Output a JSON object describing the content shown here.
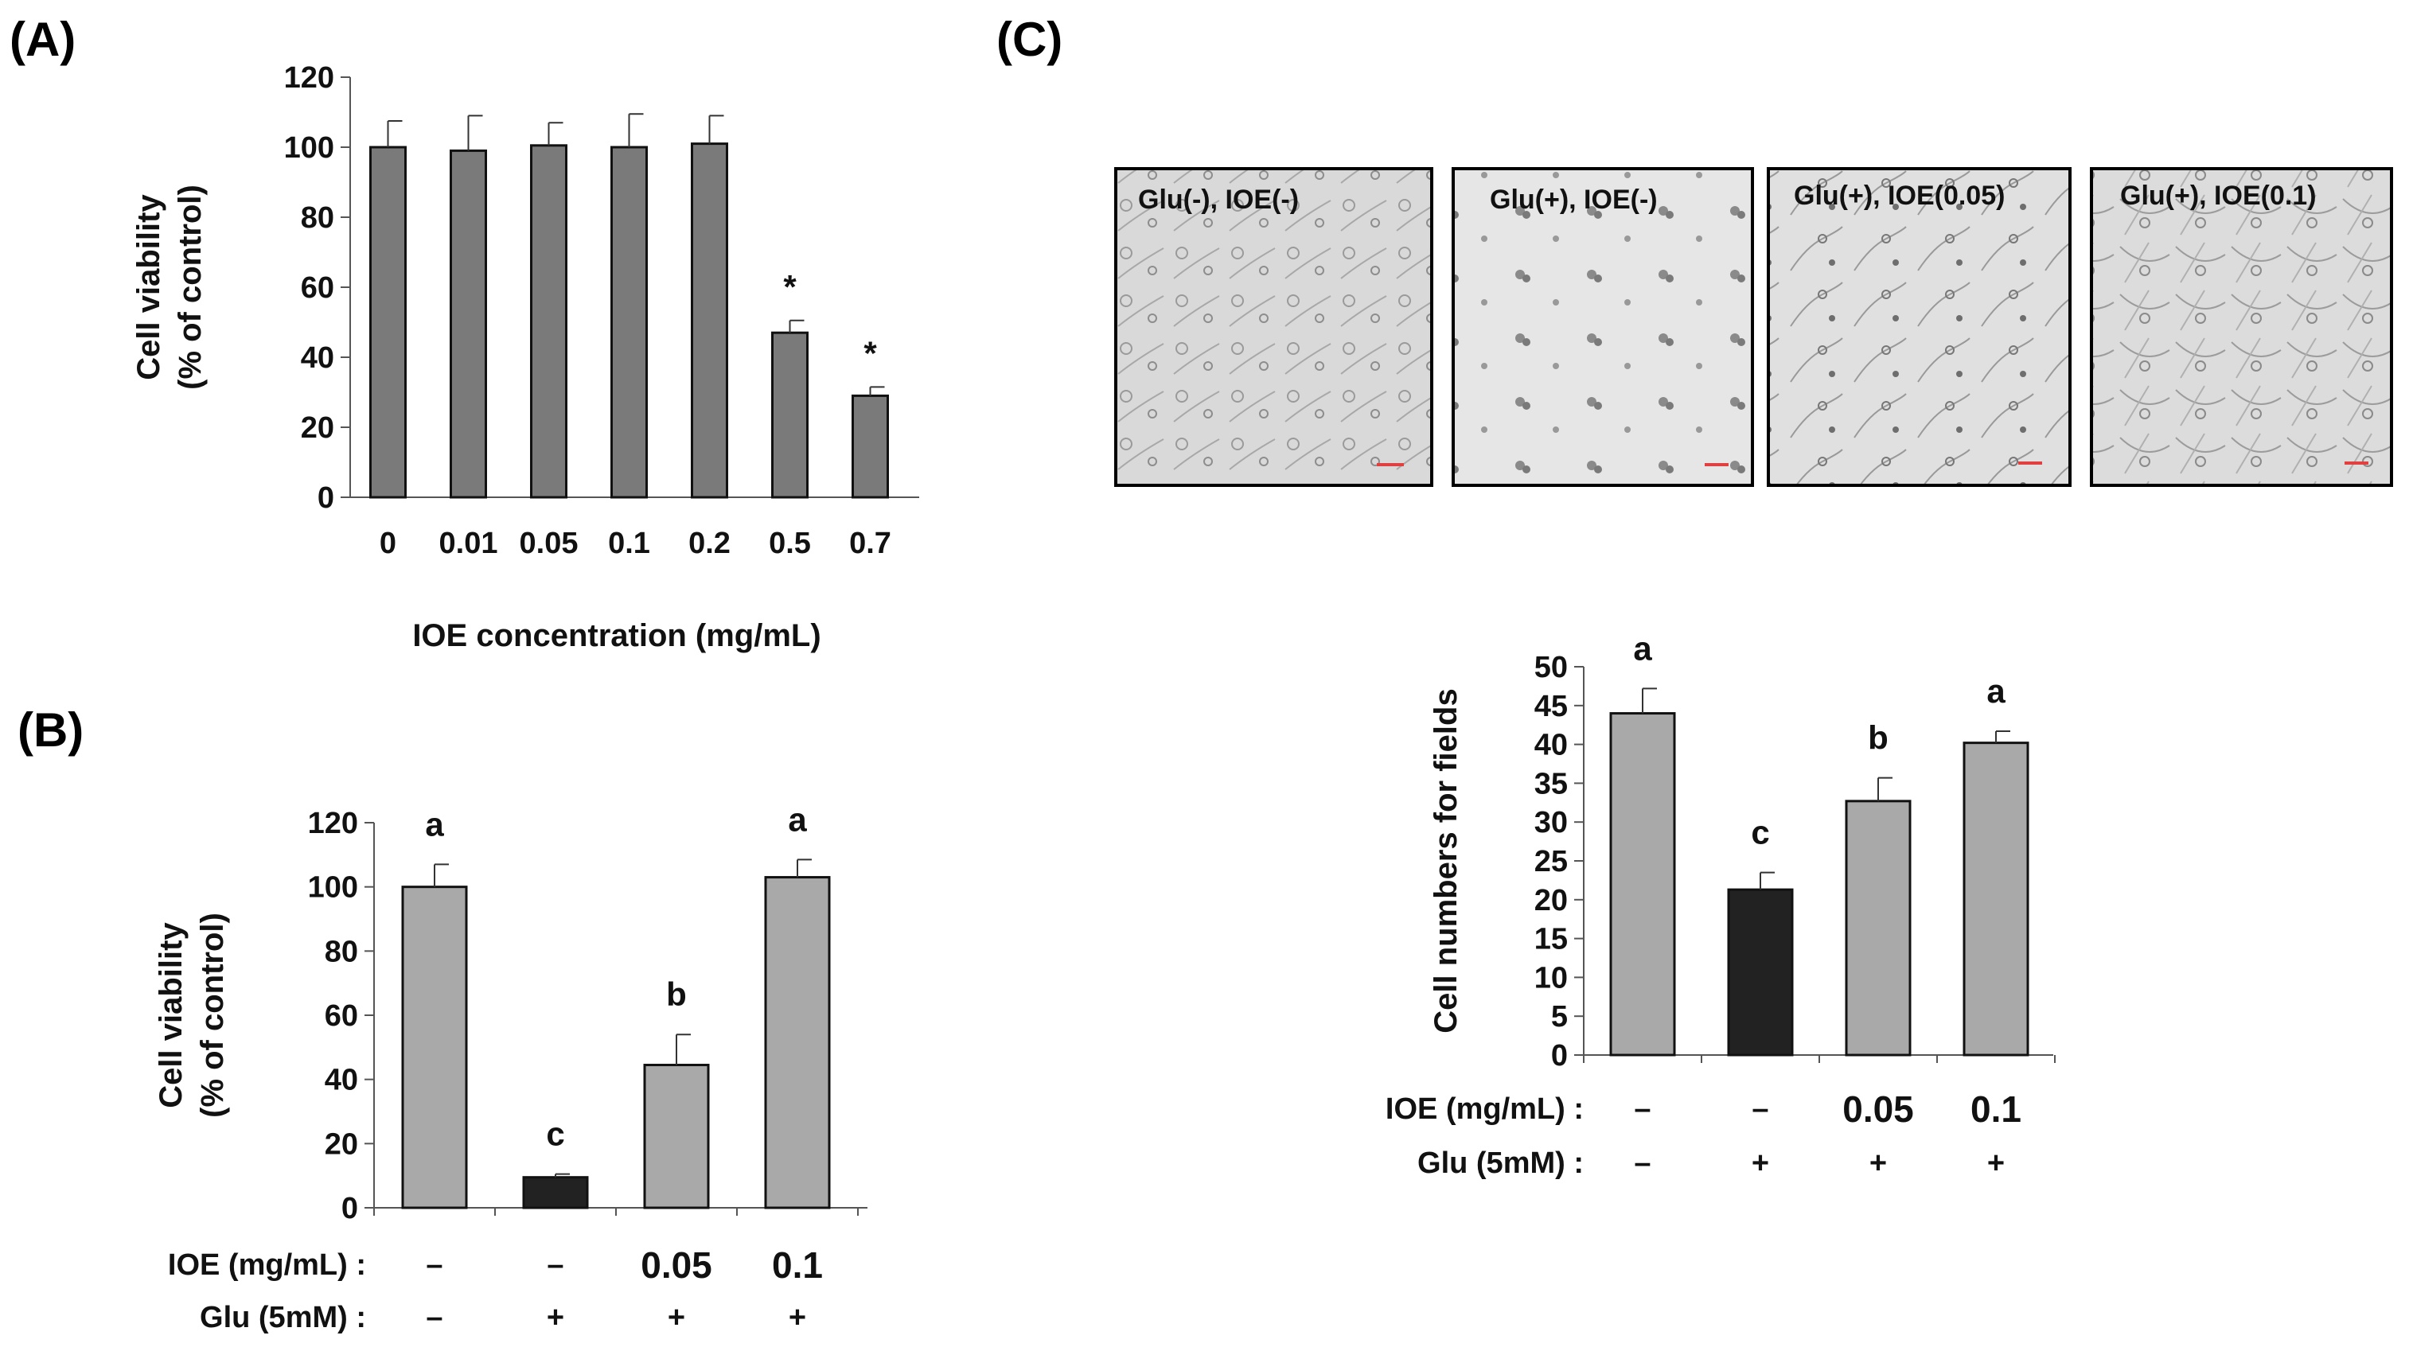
{
  "panels": {
    "A": {
      "label": "(A)"
    },
    "B": {
      "label": "(B)"
    },
    "C": {
      "label": "(C)"
    }
  },
  "micrographs": [
    {
      "label": "Glu(-), IOE(-)"
    },
    {
      "label": "Glu(+), IOE(-)"
    },
    {
      "label": "Glu(+), IOE(0.05)"
    },
    {
      "label": "Glu(+), IOE(0.1)"
    }
  ],
  "colors": {
    "gray_bar": "#7a7a7a",
    "light_bar": "#a9a9a9",
    "black_bar": "#222222"
  },
  "chart_data": [
    {
      "type": "bar",
      "panel": "A",
      "categories": [
        "0",
        "0.01",
        "0.05",
        "0.1",
        "0.2",
        "0.5",
        "0.7"
      ],
      "values": [
        100,
        99,
        100.5,
        100,
        101,
        47,
        29
      ],
      "errors": [
        7.5,
        10,
        6.5,
        9.5,
        8,
        3.5,
        2.5
      ],
      "annotations": [
        "",
        "",
        "",
        "",
        "",
        "*",
        "*"
      ],
      "xlabel": "IOE concentration (mg/mL)",
      "ylabel": [
        "Cell viability",
        "(% of control)"
      ],
      "ylim": [
        0,
        120
      ],
      "yticks": [
        0,
        20,
        40,
        60,
        80,
        100,
        120
      ],
      "grid": false
    },
    {
      "type": "bar",
      "panel": "B",
      "values": [
        100,
        9.5,
        44.5,
        103
      ],
      "errors": [
        7,
        1,
        9.5,
        5.5
      ],
      "annotations": [
        "a",
        "c",
        "b",
        "a"
      ],
      "bar_colors": [
        "#a9a9a9",
        "#222222",
        "#a9a9a9",
        "#a9a9a9"
      ],
      "ylabel": [
        "Cell viability",
        "(% of control)"
      ],
      "ylim": [
        0,
        120
      ],
      "yticks": [
        0,
        20,
        40,
        60,
        80,
        100,
        120
      ],
      "rows": [
        {
          "label": "IOE (mg/mL) :",
          "values": [
            "–",
            "–",
            "0.05",
            "0.1"
          ]
        },
        {
          "label": "Glu (5mM)  :",
          "values": [
            "–",
            "+",
            "+",
            "+"
          ]
        }
      ],
      "grid": false
    },
    {
      "type": "bar",
      "panel": "C",
      "values": [
        44,
        21.3,
        32.7,
        40.2
      ],
      "errors": [
        3.2,
        2.2,
        3,
        1.5
      ],
      "annotations": [
        "a",
        "c",
        "b",
        "a"
      ],
      "bar_colors": [
        "#a9a9a9",
        "#222222",
        "#a9a9a9",
        "#a9a9a9"
      ],
      "ylabel": "Cell numbers for fields",
      "ylim": [
        0,
        50
      ],
      "yticks": [
        0,
        5,
        10,
        15,
        20,
        25,
        30,
        35,
        40,
        45,
        50
      ],
      "rows": [
        {
          "label": "IOE (mg/mL) :",
          "values": [
            "–",
            "–",
            "0.05",
            "0.1"
          ]
        },
        {
          "label": "Glu (5mM)  :",
          "values": [
            "–",
            "+",
            "+",
            "+"
          ]
        }
      ],
      "grid": false
    }
  ]
}
